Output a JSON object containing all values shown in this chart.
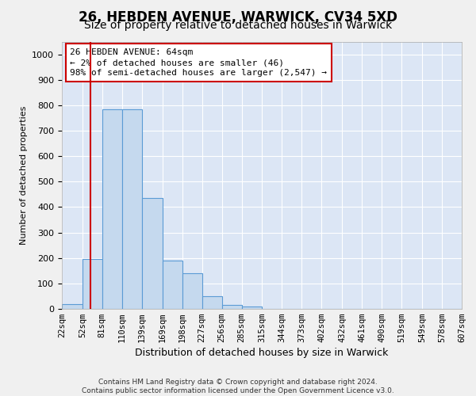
{
  "title": "26, HEBDEN AVENUE, WARWICK, CV34 5XD",
  "subtitle": "Size of property relative to detached houses in Warwick",
  "xlabel": "Distribution of detached houses by size in Warwick",
  "ylabel": "Number of detached properties",
  "footer_line1": "Contains HM Land Registry data © Crown copyright and database right 2024.",
  "footer_line2": "Contains public sector information licensed under the Open Government Licence v3.0.",
  "property_size": 64,
  "annotation_title": "26 HEBDEN AVENUE: 64sqm",
  "annotation_line1": "← 2% of detached houses are smaller (46)",
  "annotation_line2": "98% of semi-detached houses are larger (2,547) →",
  "bar_color": "#c5d9ee",
  "bar_edge_color": "#5b9bd5",
  "vline_color": "#cc0000",
  "background_color": "#dce6f5",
  "fig_background": "#f0f0f0",
  "bins": [
    22,
    52,
    81,
    110,
    139,
    169,
    198,
    227,
    256,
    285,
    315,
    344,
    373,
    402,
    432,
    461,
    490,
    519,
    549,
    578,
    607
  ],
  "counts": [
    20,
    195,
    785,
    785,
    435,
    190,
    140,
    50,
    15,
    10,
    0,
    0,
    0,
    0,
    0,
    0,
    0,
    0,
    0,
    0
  ],
  "ylim": [
    0,
    1050
  ],
  "yticks": [
    0,
    100,
    200,
    300,
    400,
    500,
    600,
    700,
    800,
    900,
    1000
  ],
  "grid_color": "#ffffff",
  "title_fontsize": 12,
  "subtitle_fontsize": 10,
  "ylabel_fontsize": 8,
  "xlabel_fontsize": 9,
  "tick_fontsize": 8,
  "xtick_fontsize": 7.5
}
